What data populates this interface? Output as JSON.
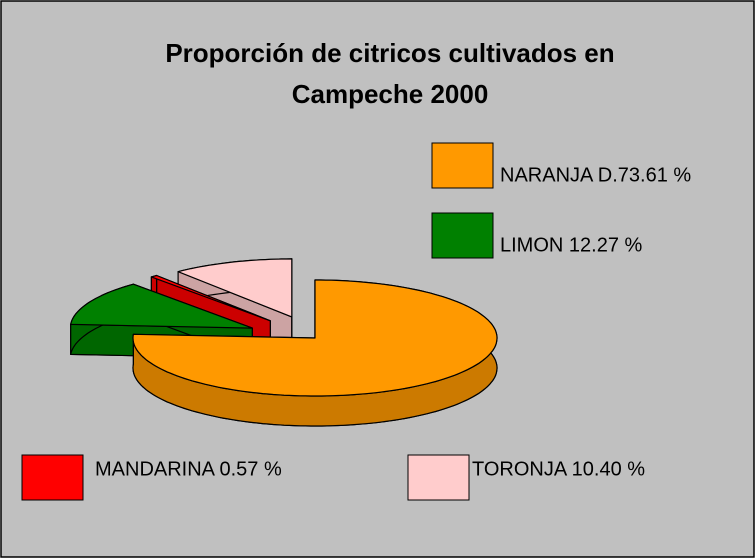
{
  "chart_data": {
    "type": "pie3d",
    "title": [
      "Proporción de citricos cultivados en",
      "Campeche 2000"
    ],
    "categories": [
      "NARANJA D.73.61 %",
      "LIMON  12.27 %",
      "MANDARINA  0.57 %",
      "TORONJA 10.40 %"
    ],
    "values": [
      73.61,
      12.27,
      0.57,
      10.4
    ],
    "colors": [
      "#ff9900",
      "#008000",
      "#ff0000",
      "#ffcccc"
    ]
  }
}
